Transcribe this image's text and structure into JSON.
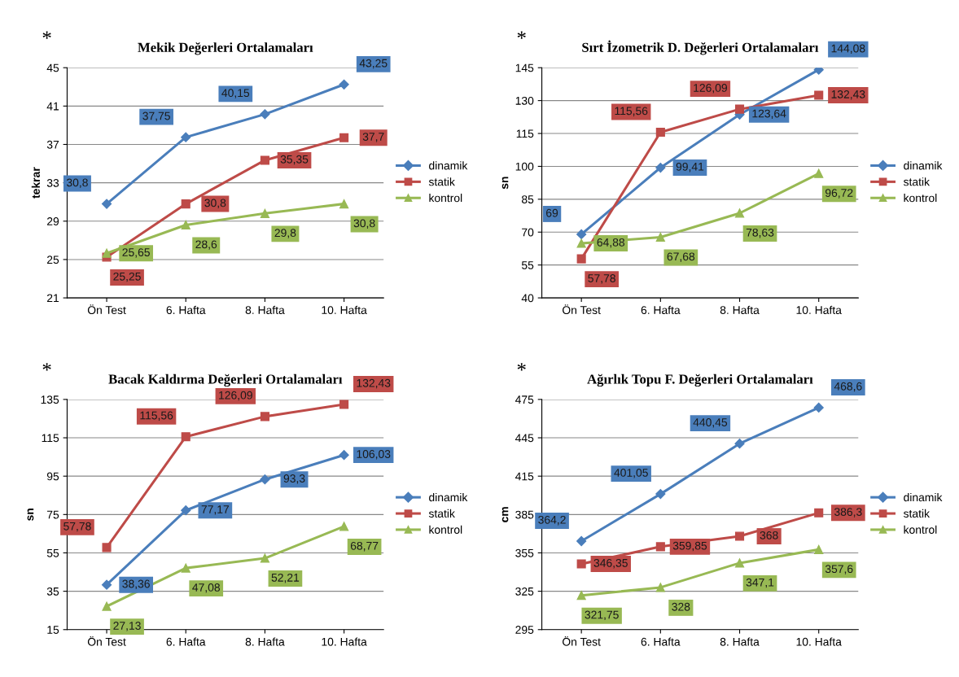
{
  "chart_data": [
    {
      "type": "line",
      "title": "Mekik Değerleri Ortalamaları",
      "ylabel": "tekrar",
      "annotations": [
        "*"
      ],
      "categories": [
        "Ön Test",
        "6. Hafta",
        "8. Hafta",
        "10. Hafta"
      ],
      "ylim": [
        21,
        45
      ],
      "yticks": [
        21,
        25,
        29,
        33,
        37,
        41,
        45
      ],
      "grid": "y",
      "legend": "right",
      "series": [
        {
          "name": "dinamik",
          "color": "#4a7ebb",
          "marker": "diamond",
          "values": [
            30.8,
            37.75,
            40.15,
            43.25
          ],
          "value_labels": [
            "30,8",
            "37,75",
            "40,15",
            "43,25"
          ]
        },
        {
          "name": "statik",
          "color": "#be4b48",
          "marker": "square",
          "values": [
            25.25,
            30.8,
            35.35,
            37.7
          ],
          "value_labels": [
            "25,25",
            "30,8",
            "35,35",
            "37,7"
          ]
        },
        {
          "name": "kontrol",
          "color": "#98b954",
          "marker": "triangle",
          "values": [
            25.65,
            28.6,
            29.8,
            30.8
          ],
          "value_labels": [
            "25,65",
            "28,6",
            "29,8",
            "30,8"
          ]
        }
      ]
    },
    {
      "type": "line",
      "title": "Sırt İzometrik D. Değerleri Ortalamaları",
      "ylabel": "sn",
      "annotations": [
        "*"
      ],
      "categories": [
        "Ön Test",
        "6. Hafta",
        "8. Hafta",
        "10. Hafta"
      ],
      "ylim": [
        40,
        145
      ],
      "yticks": [
        40,
        55,
        70,
        85,
        100,
        115,
        130,
        145
      ],
      "grid": "y",
      "legend": "right",
      "series": [
        {
          "name": "dinamik",
          "color": "#4a7ebb",
          "marker": "diamond",
          "values": [
            69,
            99.41,
            123.64,
            144.08
          ],
          "value_labels": [
            "69",
            "99,41",
            "123,64",
            "144,08"
          ]
        },
        {
          "name": "statik",
          "color": "#be4b48",
          "marker": "square",
          "values": [
            57.78,
            115.56,
            126.09,
            132.43
          ],
          "value_labels": [
            "57,78",
            "115,56",
            "126,09",
            "132,43"
          ]
        },
        {
          "name": "kontrol",
          "color": "#98b954",
          "marker": "triangle",
          "values": [
            64.88,
            67.68,
            78.63,
            96.72
          ],
          "value_labels": [
            "64,88",
            "67,68",
            "78,63",
            "96,72"
          ]
        }
      ]
    },
    {
      "type": "line",
      "title": "Bacak Kaldırma Değerleri Ortalamaları",
      "ylabel": "sn",
      "annotations": [
        "*"
      ],
      "categories": [
        "Ön Test",
        "6. Hafta",
        "8. Hafta",
        "10. Hafta"
      ],
      "ylim": [
        15,
        135
      ],
      "yticks": [
        15,
        35,
        55,
        75,
        95,
        115,
        135
      ],
      "grid": "y",
      "legend": "right",
      "series": [
        {
          "name": "dinamik",
          "color": "#4a7ebb",
          "marker": "diamond",
          "values": [
            38.36,
            77.17,
            93.3,
            106.03
          ],
          "value_labels": [
            "38,36",
            "77,17",
            "93,3",
            "106,03"
          ]
        },
        {
          "name": "statik",
          "color": "#be4b48",
          "marker": "square",
          "values": [
            57.78,
            115.56,
            126.09,
            132.43
          ],
          "value_labels": [
            "57,78",
            "115,56",
            "126,09",
            "132,43"
          ]
        },
        {
          "name": "kontrol",
          "color": "#98b954",
          "marker": "triangle",
          "values": [
            27.13,
            47.08,
            52.21,
            68.77
          ],
          "value_labels": [
            "27,13",
            "47,08",
            "52,21",
            "68,77"
          ]
        }
      ]
    },
    {
      "type": "line",
      "title": "Ağırlık Topu F. Değerleri Ortalamaları",
      "ylabel": "cm",
      "annotations": [
        "*"
      ],
      "categories": [
        "Ön Test",
        "6. Hafta",
        "8. Hafta",
        "10. Hafta"
      ],
      "ylim": [
        295,
        475
      ],
      "yticks": [
        295,
        325,
        355,
        385,
        415,
        445,
        475
      ],
      "grid": "y",
      "legend": "right",
      "series": [
        {
          "name": "dinamik",
          "color": "#4a7ebb",
          "marker": "diamond",
          "values": [
            364.2,
            401.05,
            440.45,
            468.6
          ],
          "value_labels": [
            "364,2",
            "401,05",
            "440,45",
            "468,6"
          ]
        },
        {
          "name": "statik",
          "color": "#be4b48",
          "marker": "square",
          "values": [
            346.35,
            359.85,
            368,
            386.3
          ],
          "value_labels": [
            "346,35",
            "359,85",
            "368",
            "386,3"
          ]
        },
        {
          "name": "kontrol",
          "color": "#98b954",
          "marker": "triangle",
          "values": [
            321.75,
            328,
            347.1,
            357.6
          ],
          "value_labels": [
            "321,75",
            "328",
            "347,1",
            "357,6"
          ]
        }
      ]
    }
  ]
}
